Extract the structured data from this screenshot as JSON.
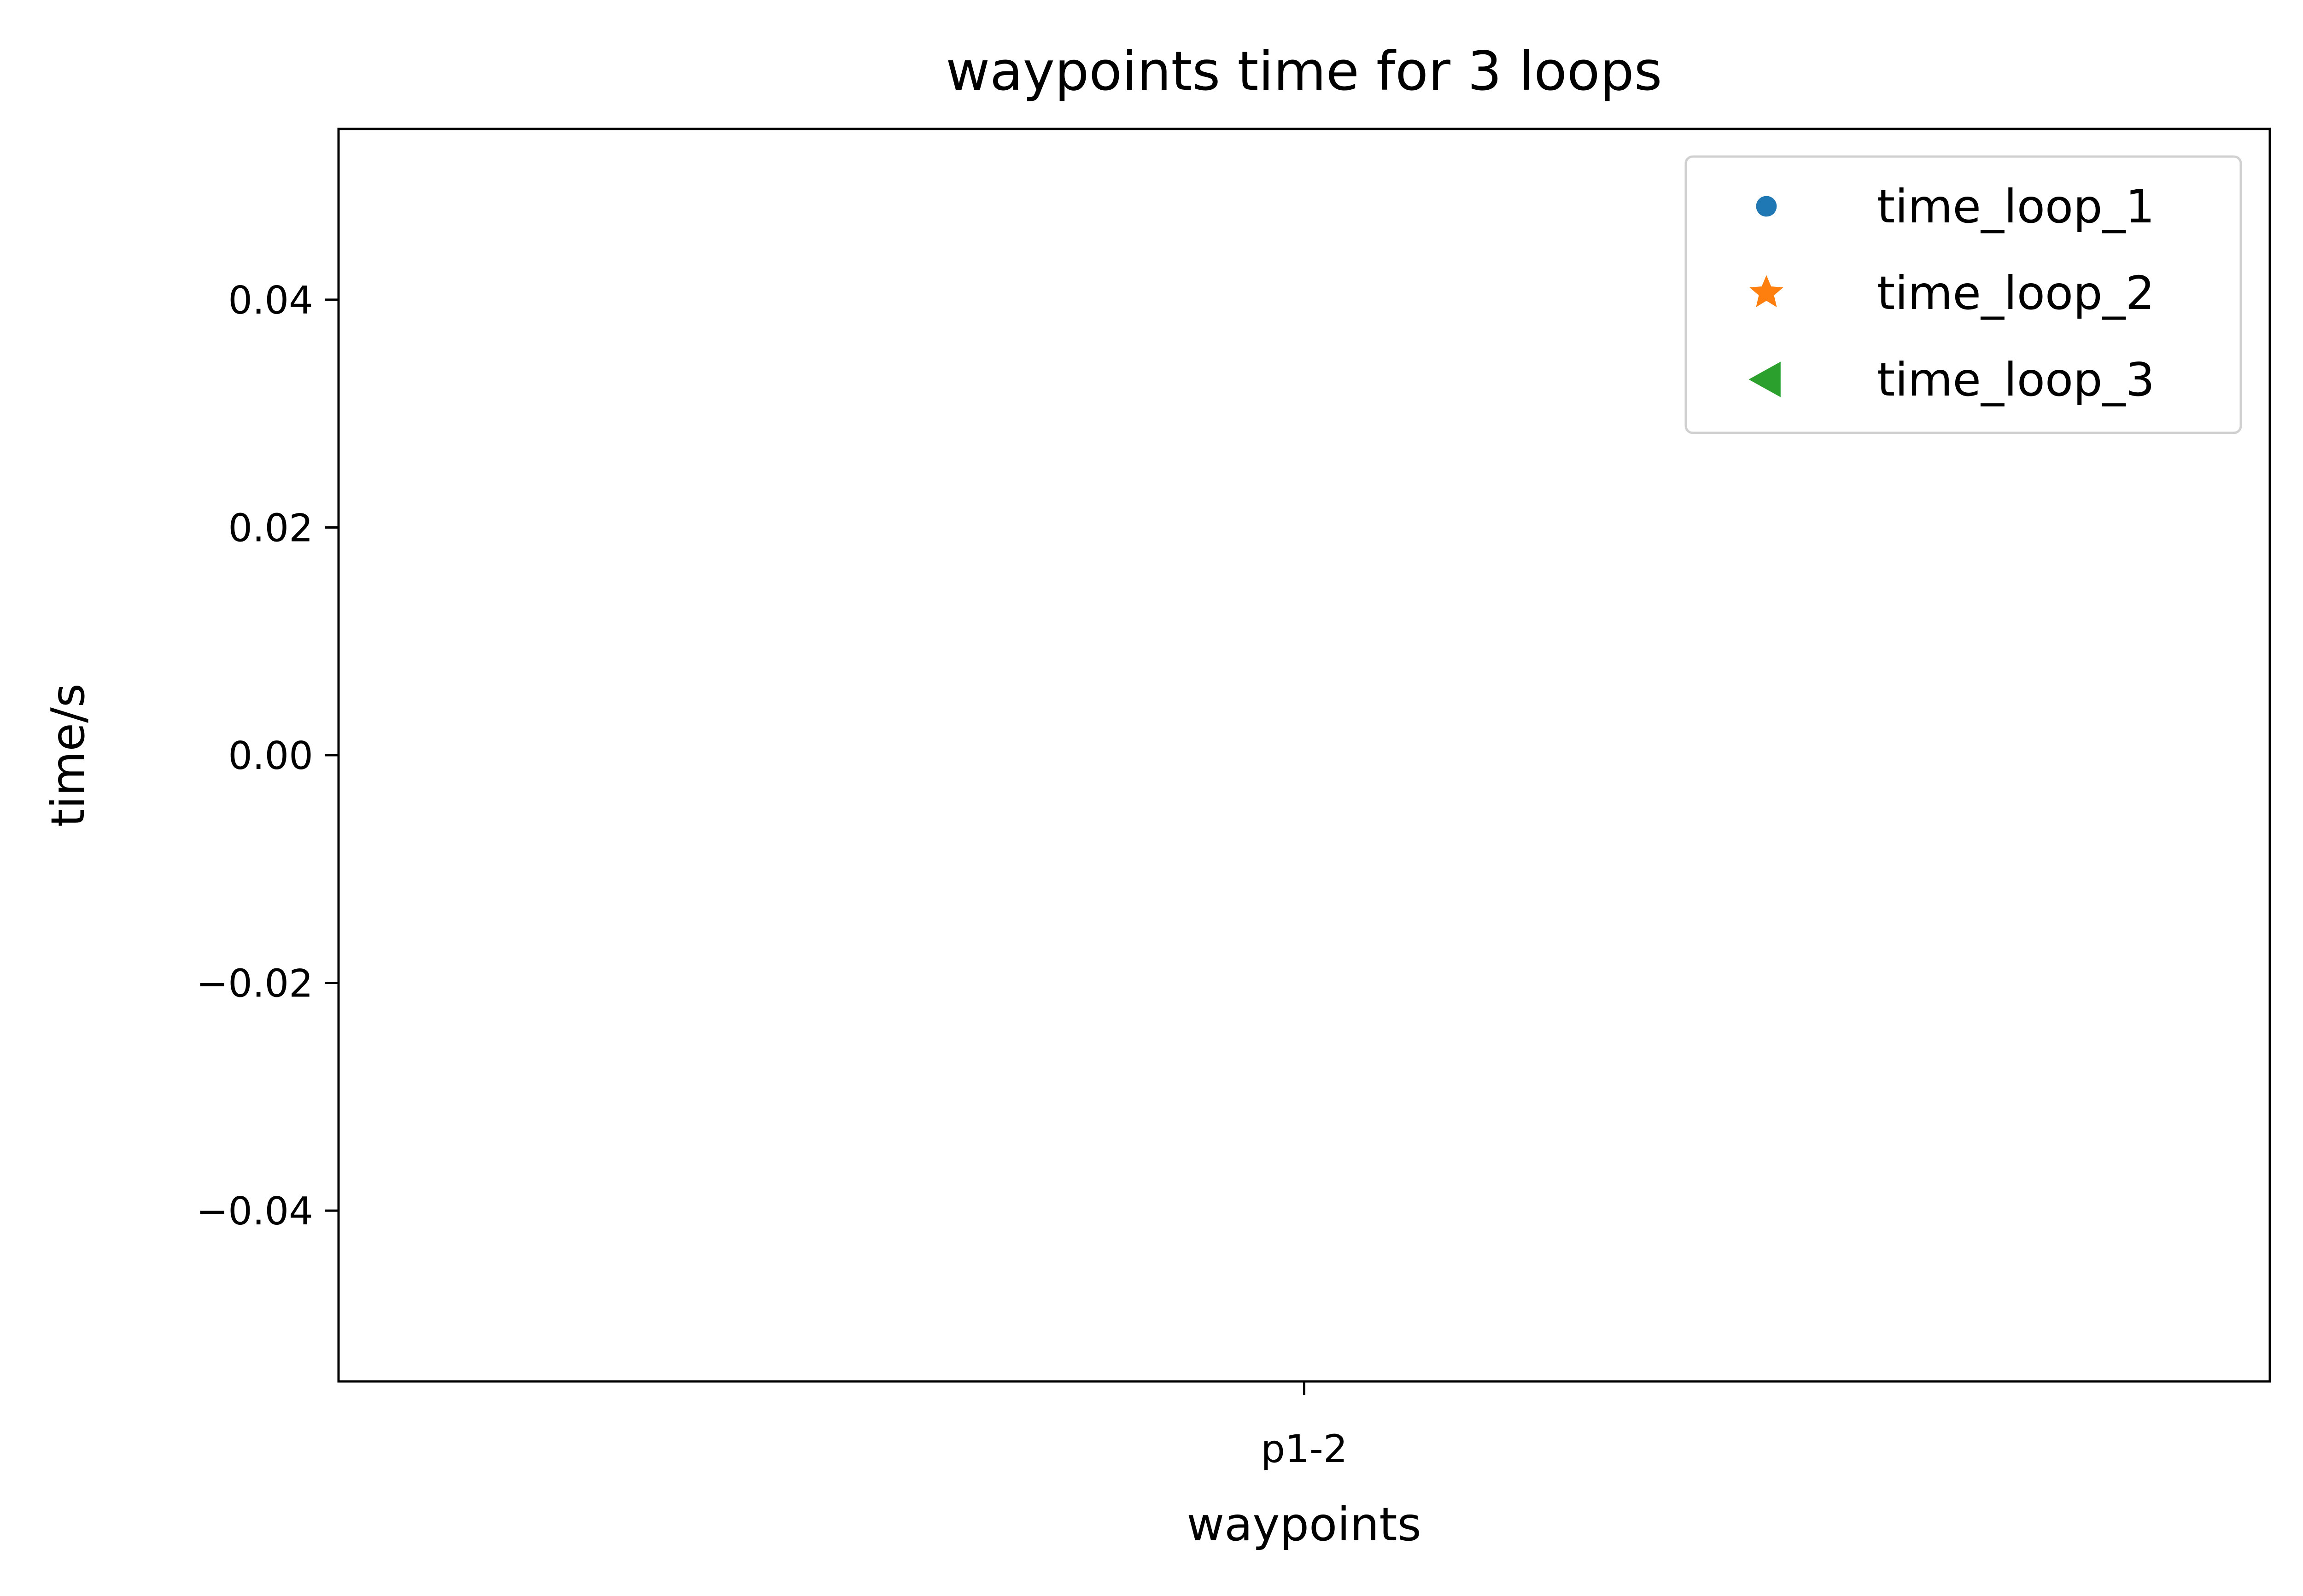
{
  "chart_data": {
    "type": "scatter",
    "title": "waypoints time for 3 loops",
    "xlabel": "waypoints",
    "ylabel": "time/s",
    "categories": [
      "p1-2"
    ],
    "ylim": [
      -0.055,
      0.055
    ],
    "yticks": [
      0.04,
      0.02,
      0.0,
      -0.02,
      -0.04
    ],
    "ytick_labels": [
      "0.04",
      "0.02",
      "0.00",
      "−0.02",
      "−0.04"
    ],
    "grid": false,
    "legend_position": "top-right",
    "series": [
      {
        "name": "time_loop_1",
        "marker": "circle",
        "color": "#1f77b4",
        "values": []
      },
      {
        "name": "time_loop_2",
        "marker": "star",
        "color": "#ff7f0e",
        "values": []
      },
      {
        "name": "time_loop_3",
        "marker": "triangle-left",
        "color": "#2ca02c",
        "values": []
      }
    ]
  }
}
